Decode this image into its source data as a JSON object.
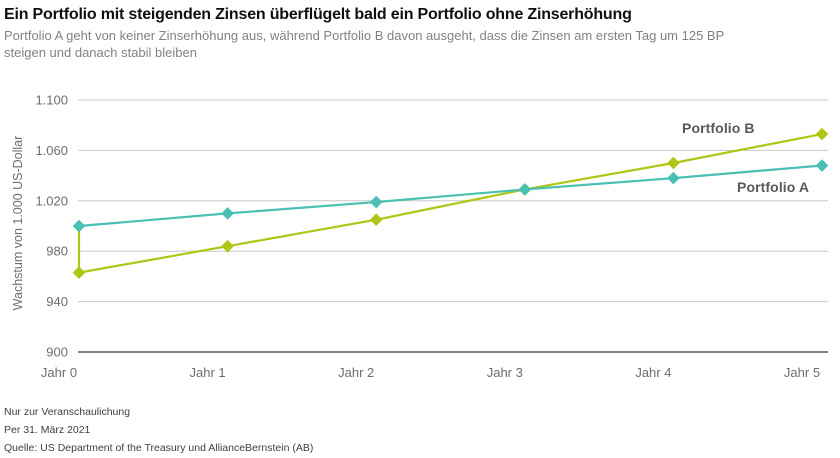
{
  "header": {
    "title": "Ein Portfolio mit steigenden Zinsen überflügelt bald ein Portfolio ohne Zinserhöhung",
    "subtitle_lines": [
      "Portfolio A geht von keiner Zinserhöhung aus, während Portfolio B davon ausgeht, dass die Zinsen am ersten Tag um 125 BP",
      "steigen und danach stabil bleiben"
    ]
  },
  "chart_data": {
    "type": "line",
    "title": "Ein Portfolio mit steigenden Zinsen überflügelt bald ein Portfolio ohne Zinserhöhung",
    "categories": [
      "Jahr 0",
      "Jahr 1",
      "Jahr 2",
      "Jahr 3",
      "Jahr 4",
      "Jahr 5"
    ],
    "series": [
      {
        "name": "Portfolio B",
        "color": "#b1c515",
        "values": [
          963,
          984,
          1005,
          1029,
          1050,
          1073
        ],
        "day_zero_start_value": 1000
      },
      {
        "name": "Portfolio A",
        "color": "#49c0b3",
        "values": [
          1000,
          1010,
          1019,
          1029,
          1038,
          1048
        ]
      }
    ],
    "ylabel": "Wachstum von 1.000 US-Dollar",
    "xlabel": "",
    "ylim": [
      900,
      1100
    ],
    "y_ticks": [
      {
        "value": 1100,
        "label": "1.100"
      },
      {
        "value": 1060,
        "label": "1.060"
      },
      {
        "value": 1020,
        "label": "1.020"
      },
      {
        "value": 980,
        "label": "980"
      },
      {
        "value": 940,
        "label": "940"
      },
      {
        "value": 900,
        "label": "900"
      }
    ],
    "grid": "horizontal",
    "gridline_color": "#c7c8ca",
    "baseline_color": "#808285",
    "axis_text_color": "#6d6e71",
    "marker": "diamond",
    "legend_position": "inline-end-labels"
  },
  "footnotes": {
    "line1": "Nur zur Veranschaulichung",
    "line2": "Per 31. März 2021",
    "line3": "Quelle: US Department of the Treasury und AllianceBernstein (AB)"
  }
}
